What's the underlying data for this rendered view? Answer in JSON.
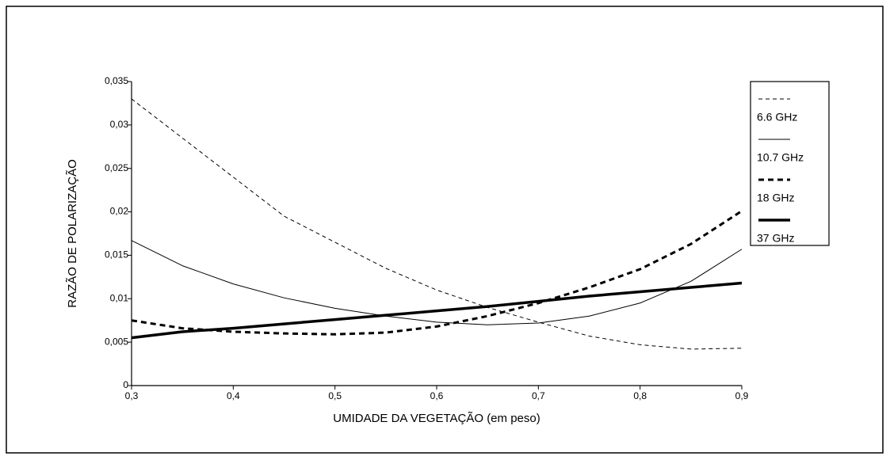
{
  "chart_data": {
    "type": "line",
    "xlabel": "UMIDADE DA VEGETAÇÃO (em peso)",
    "ylabel": "RAZÃO DE POLARIZAÇÃO",
    "x": [
      0.3,
      0.35,
      0.4,
      0.45,
      0.5,
      0.55,
      0.6,
      0.65,
      0.7,
      0.75,
      0.8,
      0.85,
      0.9
    ],
    "series": [
      {
        "name": "6.6 GHz",
        "color": "#000000",
        "width": 1,
        "dash": true,
        "values": [
          0.033,
          0.0285,
          0.024,
          0.0195,
          0.0165,
          0.0135,
          0.011,
          0.009,
          0.0073,
          0.0057,
          0.0047,
          0.0042,
          0.0043
        ]
      },
      {
        "name": "10.7 GHz",
        "color": "#000000",
        "width": 1,
        "dash": false,
        "values": [
          0.0167,
          0.0138,
          0.0117,
          0.0101,
          0.0089,
          0.008,
          0.0073,
          0.007,
          0.0072,
          0.008,
          0.0095,
          0.012,
          0.0157
        ]
      },
      {
        "name": "18 GHz",
        "color": "#000000",
        "width": 3,
        "dash": true,
        "values": [
          0.0075,
          0.0066,
          0.0062,
          0.006,
          0.0059,
          0.0061,
          0.0068,
          0.008,
          0.0095,
          0.0113,
          0.0134,
          0.0163,
          0.0201
        ]
      },
      {
        "name": "37 GHz",
        "color": "#000000",
        "width": 3.5,
        "dash": false,
        "values": [
          0.0055,
          0.0062,
          0.0066,
          0.0071,
          0.0076,
          0.0081,
          0.0086,
          0.0091,
          0.0097,
          0.0103,
          0.0108,
          0.0113,
          0.0118
        ]
      }
    ],
    "xlim": [
      0.3,
      0.9
    ],
    "xticks": [
      {
        "value": 0.3,
        "label": "0,3"
      },
      {
        "value": 0.4,
        "label": "0,4"
      },
      {
        "value": 0.5,
        "label": "0,5"
      },
      {
        "value": 0.6,
        "label": "0,6"
      },
      {
        "value": 0.7,
        "label": "0,7"
      },
      {
        "value": 0.8,
        "label": "0,8"
      },
      {
        "value": 0.9,
        "label": "0,9"
      }
    ],
    "ylim": [
      0,
      0.035
    ],
    "yticks": [
      0,
      {
        "value": 0.005,
        "label": "0,005"
      },
      {
        "value": 0.01,
        "label": "0,01"
      },
      {
        "value": 0.015,
        "label": "0,015"
      },
      {
        "value": 0.02,
        "label": "0,02"
      },
      {
        "value": 0.025,
        "label": "0,025"
      },
      {
        "value": 0.03,
        "label": "0,03"
      },
      {
        "value": 0.035,
        "label": "0,035"
      }
    ],
    "grid": false,
    "legend": "right"
  }
}
